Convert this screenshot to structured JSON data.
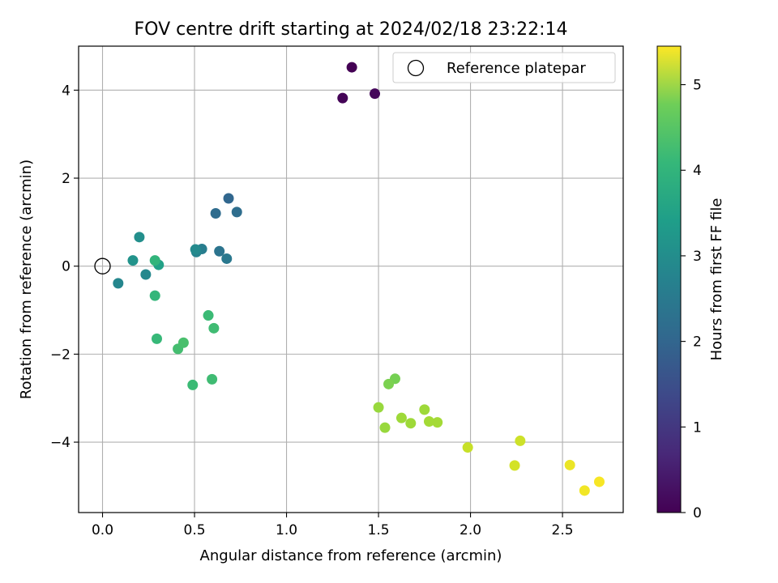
{
  "chart_data": {
    "type": "scatter",
    "title": "FOV centre drift starting at 2024/02/18 23:22:14",
    "xlabel": "Angular distance from reference (arcmin)",
    "ylabel": "Rotation from reference (arcmin)",
    "xlim": [
      -0.13,
      2.83
    ],
    "ylim": [
      -5.6,
      5.0
    ],
    "xticks": [
      0.0,
      0.5,
      1.0,
      1.5,
      2.0,
      2.5
    ],
    "xtick_labels": [
      "0.0",
      "0.5",
      "1.0",
      "1.5",
      "2.0",
      "2.5"
    ],
    "yticks": [
      -4,
      -2,
      0,
      2,
      4
    ],
    "ytick_labels": [
      "−4",
      "−2",
      "0",
      "2",
      "4"
    ],
    "grid": true,
    "legend": {
      "placement": "top-right",
      "entries": [
        {
          "label": "Reference platepar",
          "marker": "open-circle"
        }
      ]
    },
    "reference_point": {
      "x": 0.0,
      "y": 0.0
    },
    "colorbar": {
      "label": "Hours from first FF file",
      "colormap": "viridis",
      "range": [
        0,
        5.45
      ],
      "ticks": [
        0,
        1,
        2,
        3,
        4,
        5
      ],
      "tick_labels": [
        "0",
        "1",
        "2",
        "3",
        "4",
        "5"
      ]
    },
    "points": [
      {
        "x": 1.355,
        "y": 4.52,
        "c": 0.0
      },
      {
        "x": 1.305,
        "y": 3.82,
        "c": 0.05
      },
      {
        "x": 1.48,
        "y": 3.92,
        "c": 0.1
      },
      {
        "x": 0.685,
        "y": 1.54,
        "c": 1.8
      },
      {
        "x": 0.615,
        "y": 1.2,
        "c": 1.9
      },
      {
        "x": 0.73,
        "y": 1.23,
        "c": 1.95
      },
      {
        "x": 0.635,
        "y": 0.34,
        "c": 2.1
      },
      {
        "x": 0.675,
        "y": 0.17,
        "c": 2.2
      },
      {
        "x": 0.54,
        "y": 0.39,
        "c": 2.3
      },
      {
        "x": 0.51,
        "y": 0.32,
        "c": 2.45
      },
      {
        "x": 0.505,
        "y": 0.38,
        "c": 2.6
      },
      {
        "x": 0.085,
        "y": -0.39,
        "c": 2.5
      },
      {
        "x": 0.235,
        "y": -0.19,
        "c": 2.55
      },
      {
        "x": 0.2,
        "y": 0.66,
        "c": 2.7
      },
      {
        "x": 0.165,
        "y": 0.13,
        "c": 2.8
      },
      {
        "x": 0.305,
        "y": 0.03,
        "c": 3.1
      },
      {
        "x": 0.285,
        "y": 0.13,
        "c": 3.55
      },
      {
        "x": 0.285,
        "y": -0.67,
        "c": 3.6
      },
      {
        "x": 0.295,
        "y": -1.65,
        "c": 3.65
      },
      {
        "x": 0.575,
        "y": -1.12,
        "c": 3.7
      },
      {
        "x": 0.605,
        "y": -1.41,
        "c": 3.75
      },
      {
        "x": 0.41,
        "y": -1.88,
        "c": 3.8
      },
      {
        "x": 0.44,
        "y": -1.74,
        "c": 3.85
      },
      {
        "x": 0.49,
        "y": -2.7,
        "c": 3.7
      },
      {
        "x": 0.595,
        "y": -2.57,
        "c": 3.75
      },
      {
        "x": 1.59,
        "y": -2.56,
        "c": 4.3
      },
      {
        "x": 1.555,
        "y": -2.68,
        "c": 4.35
      },
      {
        "x": 1.5,
        "y": -3.21,
        "c": 4.6
      },
      {
        "x": 1.535,
        "y": -3.67,
        "c": 4.6
      },
      {
        "x": 1.625,
        "y": -3.45,
        "c": 4.65
      },
      {
        "x": 1.675,
        "y": -3.57,
        "c": 4.65
      },
      {
        "x": 1.75,
        "y": -3.26,
        "c": 4.65
      },
      {
        "x": 1.775,
        "y": -3.53,
        "c": 4.7
      },
      {
        "x": 1.82,
        "y": -3.55,
        "c": 4.7
      },
      {
        "x": 1.985,
        "y": -4.12,
        "c": 5.0
      },
      {
        "x": 2.27,
        "y": -3.97,
        "c": 5.05
      },
      {
        "x": 2.24,
        "y": -4.53,
        "c": 5.1
      },
      {
        "x": 2.54,
        "y": -4.52,
        "c": 5.3
      },
      {
        "x": 2.62,
        "y": -5.1,
        "c": 5.35
      },
      {
        "x": 2.7,
        "y": -4.9,
        "c": 5.4
      }
    ]
  }
}
